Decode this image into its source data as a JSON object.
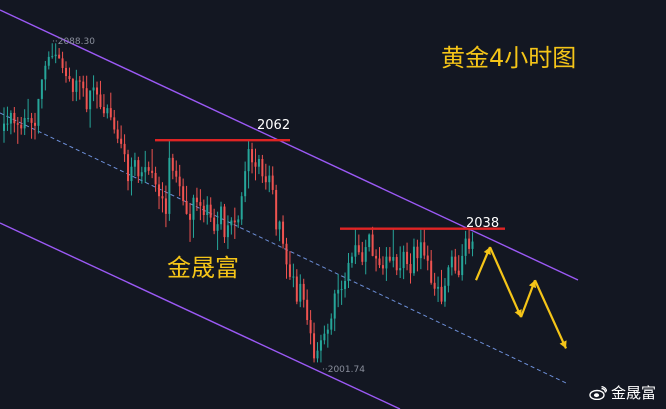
{
  "chart_data": {
    "type": "candlestick",
    "title": "黄金4小时图",
    "brand_label": "金晟富",
    "watermark": "金晟富",
    "annotations": {
      "high_label": "2088.30",
      "low_label": "2001.74",
      "resistance_1": "2062",
      "resistance_2": "2038"
    },
    "levels": {
      "resistance_1": 2062,
      "resistance_2": 2038,
      "high": 2088.3,
      "low": 2001.74
    },
    "colors": {
      "background": "#131722",
      "bull": "#26a69a",
      "bear": "#ef5350",
      "channel": "#9b59f5",
      "midline": "#6d8fd8",
      "resistance": "#e02424",
      "forecast": "#f5c518",
      "title": "#f5c518"
    },
    "candles": [
      [
        2064.5,
        2070.9,
        2061.3,
        2066.5
      ],
      [
        2066.5,
        2071.1,
        2064.5,
        2066.5
      ],
      [
        2066.5,
        2070.1,
        2063.6,
        2069.4
      ],
      [
        2069.4,
        2071.0,
        2064.1,
        2066.6
      ],
      [
        2066.6,
        2068.3,
        2061.0,
        2066.2
      ],
      [
        2066.2,
        2068.3,
        2063.5,
        2065.2
      ],
      [
        2065.2,
        2070.4,
        2063.4,
        2068.0
      ],
      [
        2068.0,
        2073.2,
        2066.9,
        2068.0
      ],
      [
        2068.0,
        2069.4,
        2062.4,
        2066.7
      ],
      [
        2066.7,
        2069.4,
        2062.2,
        2065.9
      ],
      [
        2065.9,
        2073.2,
        2063.8,
        2073.2
      ],
      [
        2073.2,
        2078.5,
        2070.6,
        2078.5
      ],
      [
        2078.5,
        2083.5,
        2075.5,
        2082.2
      ],
      [
        2082.2,
        2086.1,
        2081.2,
        2084.6
      ],
      [
        2084.6,
        2088.3,
        2084.1,
        2084.8
      ],
      [
        2084.8,
        2088.3,
        2082.9,
        2085.2
      ],
      [
        2085.2,
        2087.0,
        2084.1,
        2084.2
      ],
      [
        2084.2,
        2086.0,
        2080.2,
        2081.6
      ],
      [
        2081.6,
        2083.4,
        2077.6,
        2079.4
      ],
      [
        2079.4,
        2081.7,
        2077.9,
        2078.6
      ],
      [
        2078.6,
        2078.9,
        2072.6,
        2075.1
      ],
      [
        2075.1,
        2081.1,
        2072.6,
        2078.2
      ],
      [
        2078.2,
        2079.4,
        2073.0,
        2077.9
      ],
      [
        2077.9,
        2079.5,
        2073.8,
        2076.1
      ],
      [
        2076.1,
        2079.5,
        2069.6,
        2070.4
      ],
      [
        2070.4,
        2075.5,
        2065.4,
        2075.5
      ],
      [
        2075.5,
        2079.6,
        2072.6,
        2076.3
      ],
      [
        2076.3,
        2077.9,
        2070.6,
        2074.4
      ],
      [
        2074.4,
        2078.1,
        2070.4,
        2071.0
      ],
      [
        2071.0,
        2074.5,
        2068.3,
        2069.3
      ],
      [
        2069.3,
        2071.7,
        2067.9,
        2070.7
      ],
      [
        2070.7,
        2074.9,
        2067.4,
        2068.2
      ],
      [
        2068.2,
        2070.2,
        2063.8,
        2064.9
      ],
      [
        2064.9,
        2067.3,
        2061.2,
        2062.4
      ],
      [
        2062.4,
        2066.0,
        2059.8,
        2061.0
      ],
      [
        2061.0,
        2063.6,
        2056.1,
        2058.2
      ],
      [
        2058.2,
        2059.4,
        2048.4,
        2050.9
      ],
      [
        2050.9,
        2057.3,
        2047.0,
        2054.8
      ],
      [
        2054.8,
        2058.6,
        2052.3,
        2056.6
      ],
      [
        2056.6,
        2057.5,
        2050.4,
        2052.2
      ],
      [
        2052.2,
        2054.8,
        2050.2,
        2053.3
      ],
      [
        2053.3,
        2059.1,
        2050.4,
        2054.7
      ],
      [
        2054.7,
        2056.2,
        2052.6,
        2053.7
      ],
      [
        2053.7,
        2059.6,
        2051.7,
        2053.1
      ],
      [
        2053.1,
        2054.8,
        2048.0,
        2050.0
      ],
      [
        2050.0,
        2052.1,
        2043.3,
        2046.8
      ],
      [
        2046.8,
        2050.6,
        2042.4,
        2046.2
      ],
      [
        2046.2,
        2049.7,
        2038.4,
        2042.0
      ],
      [
        2042.0,
        2061.8,
        2040.1,
        2057.2
      ],
      [
        2057.2,
        2058.3,
        2051.4,
        2053.7
      ],
      [
        2053.7,
        2056.5,
        2050.5,
        2052.1
      ],
      [
        2052.1,
        2055.3,
        2046.8,
        2049.5
      ],
      [
        2049.5,
        2051.6,
        2044.3,
        2045.5
      ],
      [
        2045.5,
        2049.6,
        2041.8,
        2042.0
      ],
      [
        2042.0,
        2044.9,
        2034.4,
        2040.4
      ],
      [
        2040.4,
        2047.2,
        2035.5,
        2046.4
      ],
      [
        2046.4,
        2049.1,
        2042.8,
        2045.2
      ],
      [
        2045.2,
        2048.7,
        2040.3,
        2044.2
      ],
      [
        2044.2,
        2045.9,
        2039.7,
        2041.7
      ],
      [
        2041.7,
        2046.8,
        2039.1,
        2044.5
      ],
      [
        2044.5,
        2046.5,
        2039.8,
        2041.0
      ],
      [
        2041.0,
        2043.4,
        2036.5,
        2037.4
      ],
      [
        2037.4,
        2042.6,
        2032.2,
        2039.2
      ],
      [
        2039.2,
        2045.3,
        2037.7,
        2044.0
      ],
      [
        2044.0,
        2044.7,
        2034.1,
        2035.7
      ],
      [
        2035.7,
        2041.6,
        2032.5,
        2038.9
      ],
      [
        2038.9,
        2041.1,
        2036.4,
        2040.2
      ],
      [
        2040.2,
        2043.7,
        2035.2,
        2039.7
      ],
      [
        2039.7,
        2041.6,
        2038.2,
        2040.5
      ],
      [
        2040.5,
        2047.9,
        2039.0,
        2046.8
      ],
      [
        2046.8,
        2056.2,
        2045.2,
        2053.6
      ],
      [
        2053.6,
        2062.0,
        2048.9,
        2059.6
      ],
      [
        2059.6,
        2061.3,
        2053.0,
        2056.0
      ],
      [
        2056.0,
        2059.7,
        2051.1,
        2054.8
      ],
      [
        2054.8,
        2058.0,
        2052.8,
        2056.9
      ],
      [
        2056.9,
        2058.0,
        2050.4,
        2052.2
      ],
      [
        2052.2,
        2055.6,
        2048.6,
        2050.6
      ],
      [
        2050.6,
        2055.1,
        2047.9,
        2052.4
      ],
      [
        2052.4,
        2054.9,
        2047.3,
        2048.5
      ],
      [
        2048.5,
        2049.9,
        2036.1,
        2037.8
      ],
      [
        2037.8,
        2040.2,
        2034.6,
        2039.9
      ],
      [
        2039.9,
        2041.6,
        2032.6,
        2033.9
      ],
      [
        2033.9,
        2035.5,
        2024.4,
        2028.3
      ],
      [
        2028.3,
        2031.9,
        2024.1,
        2024.9
      ],
      [
        2024.9,
        2028.5,
        2022.1,
        2025.0
      ],
      [
        2025.0,
        2027.0,
        2017.5,
        2018.2
      ],
      [
        2018.2,
        2025.6,
        2016.7,
        2023.0
      ],
      [
        2023.0,
        2024.4,
        2016.6,
        2018.7
      ],
      [
        2018.7,
        2021.5,
        2011.9,
        2013.2
      ],
      [
        2013.2,
        2015.9,
        2006.6,
        2009.6
      ],
      [
        2009.6,
        2012.5,
        2001.7,
        2002.8
      ],
      [
        2002.8,
        2007.2,
        2001.7,
        2004.9
      ],
      [
        2004.9,
        2009.2,
        2001.7,
        2007.7
      ],
      [
        2007.7,
        2011.7,
        2006.6,
        2009.5
      ],
      [
        2009.5,
        2012.2,
        2005.7,
        2010.6
      ],
      [
        2010.6,
        2015.0,
        2009.2,
        2013.6
      ],
      [
        2013.6,
        2021.4,
        2010.2,
        2020.4
      ],
      [
        2020.4,
        2025.7,
        2016.7,
        2021.4
      ],
      [
        2021.4,
        2023.9,
        2017.3,
        2021.6
      ],
      [
        2021.6,
        2026.1,
        2019.3,
        2023.8
      ],
      [
        2023.8,
        2031.4,
        2021.9,
        2028.7
      ],
      [
        2028.7,
        2031.5,
        2027.4,
        2030.4
      ],
      [
        2030.4,
        2037.9,
        2028.4,
        2033.5
      ],
      [
        2033.5,
        2036.4,
        2030.9,
        2031.6
      ],
      [
        2031.6,
        2034.4,
        2028.1,
        2029.0
      ],
      [
        2029.0,
        2035.0,
        2025.6,
        2033.0
      ],
      [
        2033.0,
        2036.7,
        2031.8,
        2036.4
      ],
      [
        2036.4,
        2038.5,
        2030.5,
        2030.6
      ],
      [
        2030.6,
        2032.4,
        2026.4,
        2029.9
      ],
      [
        2029.9,
        2033.0,
        2027.3,
        2028.1
      ],
      [
        2028.1,
        2030.5,
        2025.5,
        2027.2
      ],
      [
        2027.2,
        2033.0,
        2023.8,
        2030.4
      ],
      [
        2030.4,
        2033.0,
        2028.8,
        2029.3
      ],
      [
        2029.3,
        2038.0,
        2027.5,
        2030.3
      ],
      [
        2030.3,
        2031.1,
        2025.4,
        2026.7
      ],
      [
        2026.7,
        2033.2,
        2024.6,
        2027.3
      ],
      [
        2027.3,
        2033.4,
        2024.3,
        2031.7
      ],
      [
        2031.7,
        2034.2,
        2026.7,
        2028.4
      ],
      [
        2028.4,
        2031.3,
        2023.1,
        2025.9
      ],
      [
        2025.9,
        2035.3,
        2025.2,
        2033.1
      ],
      [
        2033.1,
        2035.0,
        2026.4,
        2030.0
      ],
      [
        2030.0,
        2038.0,
        2027.0,
        2034.3
      ],
      [
        2034.3,
        2038.0,
        2029.7,
        2030.7
      ],
      [
        2030.7,
        2033.4,
        2026.7,
        2029.3
      ],
      [
        2029.3,
        2032.2,
        2022.8,
        2023.3
      ],
      [
        2023.3,
        2026.0,
        2019.8,
        2021.7
      ],
      [
        2021.7,
        2025.0,
        2018.1,
        2022.2
      ],
      [
        2022.2,
        2026.8,
        2017.5,
        2018.2
      ],
      [
        2018.2,
        2024.6,
        2016.8,
        2022.5
      ],
      [
        2022.5,
        2028.1,
        2020.7,
        2027.5
      ],
      [
        2027.5,
        2032.1,
        2025.3,
        2030.4
      ],
      [
        2030.4,
        2032.5,
        2025.8,
        2026.6
      ],
      [
        2026.6,
        2030.8,
        2024.8,
        2025.4
      ],
      [
        2025.4,
        2033.8,
        2023.9,
        2030.6
      ],
      [
        2030.6,
        2037.4,
        2028.3,
        2035.3
      ],
      [
        2035.3,
        2038.0,
        2031.2,
        2032.5
      ],
      [
        2032.5,
        2037.0,
        2030.5,
        2034.5
      ]
    ],
    "forecast_path": [
      2038.0,
      2022.0,
      2033.5,
      2018.5,
      2005.5
    ]
  }
}
